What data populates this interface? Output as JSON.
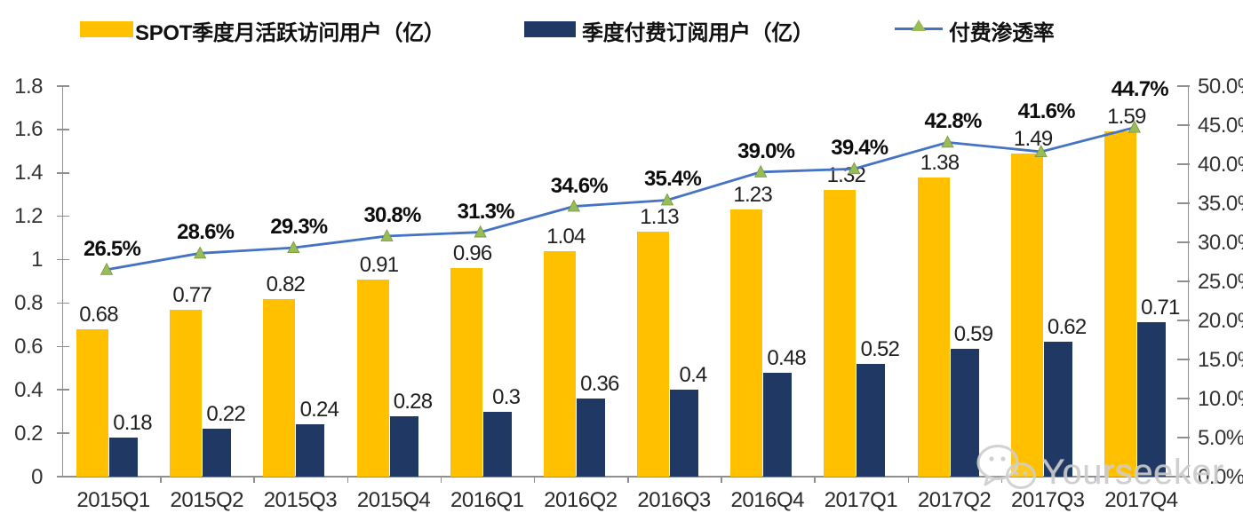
{
  "legend": {
    "items": [
      {
        "label": "SPOT季度月活跃访问用户（亿）",
        "swatch": "bar",
        "color": "#FFC000"
      },
      {
        "label": "季度付费订阅用户（亿）",
        "swatch": "bar",
        "color": "#1F3864"
      },
      {
        "label": "付费渗透率",
        "swatch": "line-with-triangle-marker",
        "color": "#4472C4",
        "marker_color": "#9BBB59"
      }
    ]
  },
  "watermark": {
    "text": "Yourseeker",
    "icon": "wechat-icon"
  },
  "chart_data": {
    "type": "bar",
    "subtype": "grouped-bar-with-line-combo",
    "title": "",
    "xlabel": "",
    "ylabel": "",
    "grid": false,
    "legend_position": "top",
    "categories": [
      "2015Q1",
      "2015Q2",
      "2015Q3",
      "2015Q4",
      "2016Q1",
      "2016Q2",
      "2016Q3",
      "2016Q4",
      "2017Q1",
      "2017Q2",
      "2017Q3",
      "2017Q4"
    ],
    "series": [
      {
        "name": "SPOT季度月活跃访问用户（亿）",
        "type": "bar",
        "axis": "left",
        "color": "#FFC000",
        "values": [
          0.68,
          0.77,
          0.82,
          0.91,
          0.96,
          1.04,
          1.13,
          1.23,
          1.32,
          1.38,
          1.49,
          1.59
        ],
        "labels": [
          "0.68",
          "0.77",
          "0.82",
          "0.91",
          "0.96",
          "1.04",
          "1.13",
          "1.23",
          "1.32",
          "1.38",
          "1.49",
          "1.59"
        ]
      },
      {
        "name": "季度付费订阅用户（亿）",
        "type": "bar",
        "axis": "left",
        "color": "#1F3864",
        "values": [
          0.18,
          0.22,
          0.24,
          0.28,
          0.3,
          0.36,
          0.4,
          0.48,
          0.52,
          0.59,
          0.62,
          0.71
        ],
        "labels": [
          "0.18",
          "0.22",
          "0.24",
          "0.28",
          "0.3",
          "0.36",
          "0.4",
          "0.48",
          "0.52",
          "0.59",
          "0.62",
          "0.71"
        ]
      },
      {
        "name": "付费渗透率",
        "type": "line",
        "axis": "right",
        "color": "#4472C4",
        "marker": "triangle",
        "marker_color": "#9BBB59",
        "values": [
          26.5,
          28.6,
          29.3,
          30.8,
          31.3,
          34.6,
          35.4,
          39.0,
          39.4,
          42.8,
          41.6,
          44.7
        ],
        "labels": [
          "26.5%",
          "28.6%",
          "29.3%",
          "30.8%",
          "31.3%",
          "34.6%",
          "35.4%",
          "39.0%",
          "39.4%",
          "42.8%",
          "41.6%",
          "44.7%"
        ]
      }
    ],
    "left_axis": {
      "min": 0,
      "max": 1.8,
      "ticks": [
        "1.8",
        "1.6",
        "1.4",
        "1.2",
        "1",
        "0.8",
        "0.6",
        "0.4",
        "0.2",
        "0"
      ]
    },
    "right_axis": {
      "min": 0,
      "max": 50,
      "ticks": [
        "50.0%",
        "45.0%",
        "40.0%",
        "35.0%",
        "30.0%",
        "25.0%",
        "20.0%",
        "15.0%",
        "10.0%",
        "5.0%",
        "0.0%"
      ]
    }
  }
}
